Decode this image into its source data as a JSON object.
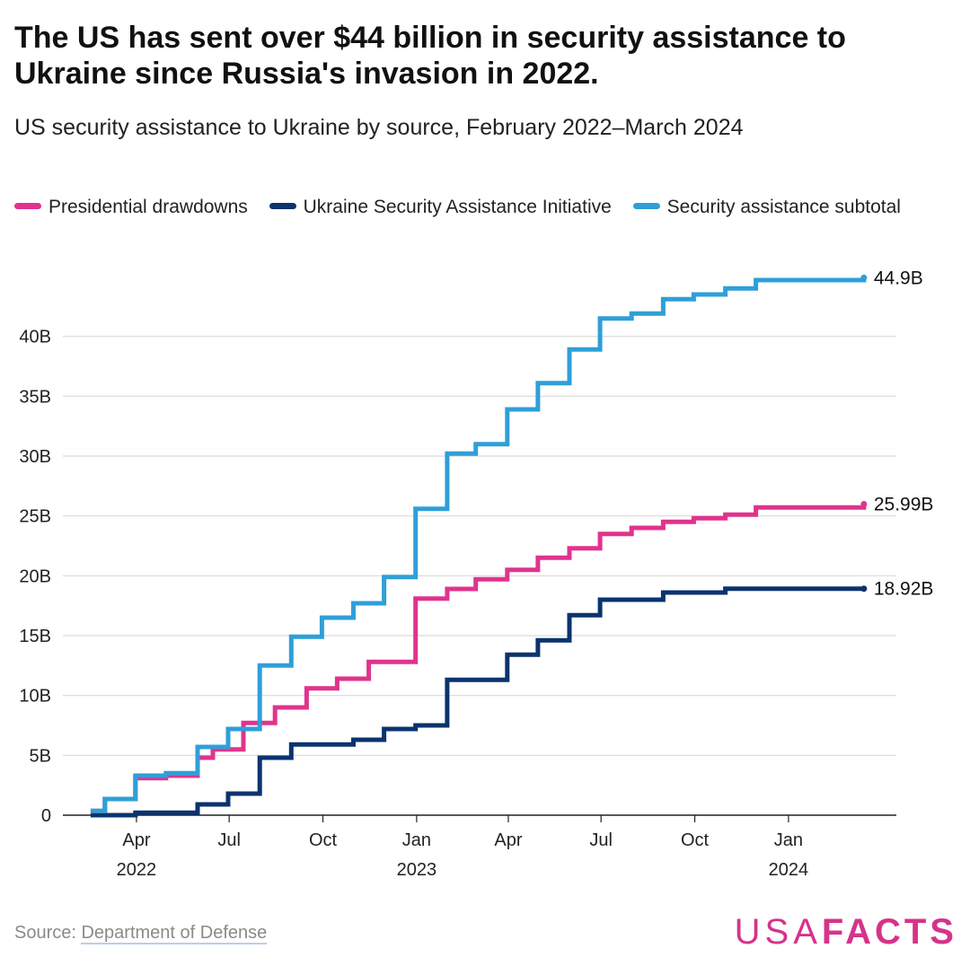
{
  "header": {
    "title": "The US has sent over $44 billion in security assistance to Ukraine since Russia's invasion in 2022.",
    "subtitle": "US security assistance to Ukraine by source, February 2022–March 2024"
  },
  "colors": {
    "presidential": "#e0338e",
    "usai": "#0b336e",
    "subtotal": "#2f9fd8",
    "grid": "#d9d9d9",
    "axis": "#222222"
  },
  "chart_data": {
    "type": "line",
    "step": true,
    "x_type": "date",
    "ylim": [
      0,
      45
    ],
    "y_ticks": [
      0,
      5,
      10,
      15,
      20,
      25,
      30,
      35,
      40
    ],
    "y_tick_labels": [
      "0",
      "5B",
      "10B",
      "15B",
      "20B",
      "25B",
      "30B",
      "35B",
      "40B"
    ],
    "x_ticks": [
      {
        "date": "2022-04-01",
        "label": "Apr",
        "year": "2022"
      },
      {
        "date": "2022-07-01",
        "label": "Jul",
        "year": ""
      },
      {
        "date": "2022-10-01",
        "label": "Oct",
        "year": ""
      },
      {
        "date": "2023-01-01",
        "label": "Jan",
        "year": "2023"
      },
      {
        "date": "2023-04-01",
        "label": "Apr",
        "year": ""
      },
      {
        "date": "2023-07-01",
        "label": "Jul",
        "year": ""
      },
      {
        "date": "2023-10-01",
        "label": "Oct",
        "year": ""
      },
      {
        "date": "2024-01-01",
        "label": "Jan",
        "year": "2024"
      }
    ],
    "x_range": [
      "2022-02-01",
      "2024-03-31"
    ],
    "legend_position": "top-left",
    "grid": true,
    "series": [
      {
        "name": "Presidential drawdowns",
        "color_key": "presidential",
        "end_label": "25.99B",
        "points": [
          [
            "2022-02-15",
            0.35
          ],
          [
            "2022-03-01",
            1.35
          ],
          [
            "2022-03-31",
            3.1
          ],
          [
            "2022-04-30",
            3.3
          ],
          [
            "2022-05-31",
            4.8
          ],
          [
            "2022-06-15",
            5.5
          ],
          [
            "2022-07-15",
            7.7
          ],
          [
            "2022-08-15",
            9.0
          ],
          [
            "2022-09-15",
            10.6
          ],
          [
            "2022-10-15",
            11.4
          ],
          [
            "2022-11-15",
            12.8
          ],
          [
            "2022-12-31",
            18.1
          ],
          [
            "2023-01-31",
            18.9
          ],
          [
            "2023-02-28",
            19.7
          ],
          [
            "2023-03-31",
            20.5
          ],
          [
            "2023-04-30",
            21.5
          ],
          [
            "2023-05-31",
            22.3
          ],
          [
            "2023-06-30",
            23.5
          ],
          [
            "2023-07-31",
            24.0
          ],
          [
            "2023-08-31",
            24.5
          ],
          [
            "2023-09-30",
            24.8
          ],
          [
            "2023-10-31",
            25.1
          ],
          [
            "2023-11-30",
            25.7
          ],
          [
            "2024-03-15",
            25.99
          ]
        ]
      },
      {
        "name": "Ukraine Security Assistance Initiative",
        "color_key": "usai",
        "end_label": "18.92B",
        "points": [
          [
            "2022-02-15",
            0.0
          ],
          [
            "2022-03-31",
            0.2
          ],
          [
            "2022-05-31",
            0.9
          ],
          [
            "2022-06-30",
            1.8
          ],
          [
            "2022-07-31",
            4.8
          ],
          [
            "2022-08-31",
            5.9
          ],
          [
            "2022-10-31",
            6.3
          ],
          [
            "2022-11-30",
            7.2
          ],
          [
            "2022-12-31",
            7.5
          ],
          [
            "2023-01-31",
            11.3
          ],
          [
            "2023-03-31",
            13.4
          ],
          [
            "2023-04-30",
            14.6
          ],
          [
            "2023-05-31",
            16.7
          ],
          [
            "2023-06-30",
            18.0
          ],
          [
            "2023-08-31",
            18.6
          ],
          [
            "2023-10-31",
            18.92
          ],
          [
            "2024-03-15",
            18.92
          ]
        ]
      },
      {
        "name": "Security assistance subtotal",
        "color_key": "subtotal",
        "end_label": "44.9B",
        "points": [
          [
            "2022-02-15",
            0.35
          ],
          [
            "2022-03-01",
            1.35
          ],
          [
            "2022-03-31",
            3.3
          ],
          [
            "2022-04-30",
            3.5
          ],
          [
            "2022-05-31",
            5.7
          ],
          [
            "2022-06-30",
            7.2
          ],
          [
            "2022-07-31",
            12.5
          ],
          [
            "2022-08-31",
            14.9
          ],
          [
            "2022-09-30",
            16.5
          ],
          [
            "2022-10-31",
            17.7
          ],
          [
            "2022-11-30",
            19.9
          ],
          [
            "2022-12-31",
            25.6
          ],
          [
            "2023-01-31",
            30.2
          ],
          [
            "2023-02-28",
            31.0
          ],
          [
            "2023-03-31",
            33.9
          ],
          [
            "2023-04-30",
            36.1
          ],
          [
            "2023-05-31",
            38.9
          ],
          [
            "2023-06-30",
            41.5
          ],
          [
            "2023-07-31",
            41.9
          ],
          [
            "2023-08-31",
            43.1
          ],
          [
            "2023-09-30",
            43.5
          ],
          [
            "2023-10-31",
            44.0
          ],
          [
            "2023-11-30",
            44.7
          ],
          [
            "2024-03-15",
            44.9
          ]
        ]
      }
    ]
  },
  "footer": {
    "source_prefix": "Source: ",
    "source_link": "Department of Defense",
    "logo_usa": "USA",
    "logo_facts": "FACTS"
  }
}
